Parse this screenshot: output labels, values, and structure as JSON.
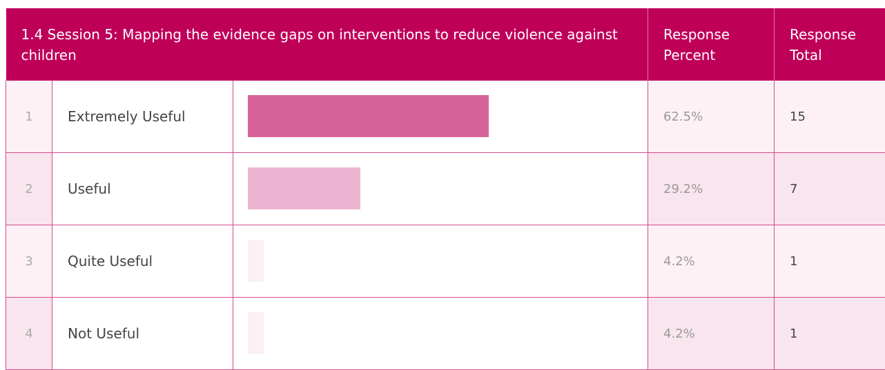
{
  "header": {
    "title": "1.4 Session 5: Mapping the evidence gaps on interventions to reduce violence against children",
    "col_percent": "Response Percent",
    "col_total": "Response Total"
  },
  "bar_scale_max": 100,
  "table": {
    "rows": [
      {
        "number": 1,
        "label": "Extremely Useful",
        "percent": 62.5,
        "percent_label": "62.5%",
        "total": 15,
        "color": "#d66398"
      },
      {
        "number": 2,
        "label": "Useful",
        "percent": 29.2,
        "percent_label": "29.2%",
        "total": 7,
        "color": "#ecb4d0"
      },
      {
        "number": 3,
        "label": "Quite Useful",
        "percent": 4.2,
        "percent_label": "4.2%",
        "total": 1,
        "color": "#fcf0f5"
      },
      {
        "number": 4,
        "label": "Not Useful",
        "percent": 4.2,
        "percent_label": "4.2%",
        "total": 1,
        "color": "#fcf0f5"
      }
    ]
  }
}
